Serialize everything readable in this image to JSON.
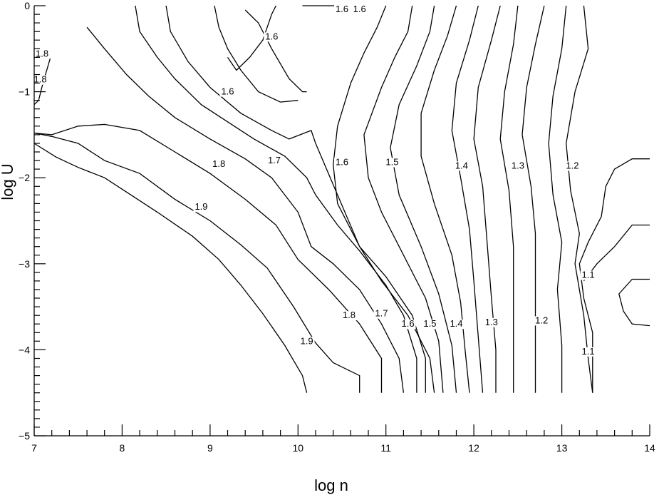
{
  "chart_data": {
    "type": "contour",
    "xlabel": "log n",
    "ylabel": "log U",
    "xlim": [
      7,
      14
    ],
    "ylim": [
      -5,
      0
    ],
    "x_ticks": [
      7,
      8,
      9,
      10,
      11,
      12,
      13,
      14
    ],
    "x_tick_labels": [
      "7",
      "8",
      "9",
      "10",
      "11",
      "12",
      "13",
      "14"
    ],
    "y_ticks": [
      0,
      -1,
      -2,
      -3,
      -4,
      -5
    ],
    "y_tick_labels": [
      "0",
      "−1",
      "−2",
      "−3",
      "−4",
      "−5"
    ],
    "grid": false,
    "line_color": "#000000",
    "contours": [
      {
        "level": "1.9",
        "points": [
          [
            7.0,
            -1.6
          ],
          [
            7.25,
            -1.76
          ],
          [
            7.5,
            -1.88
          ],
          [
            7.8,
            -2.0
          ],
          [
            8.1,
            -2.2
          ],
          [
            8.4,
            -2.4
          ],
          [
            8.8,
            -2.68
          ],
          [
            9.1,
            -2.95
          ],
          [
            9.35,
            -3.25
          ],
          [
            9.6,
            -3.58
          ],
          [
            9.85,
            -3.95
          ],
          [
            10.05,
            -4.3
          ],
          [
            10.1,
            -4.5
          ]
        ]
      },
      {
        "level": "1.9",
        "points": [
          [
            7.0,
            -1.48
          ],
          [
            7.2,
            -1.52
          ],
          [
            7.5,
            -1.6
          ],
          [
            7.8,
            -1.8
          ],
          [
            8.2,
            -1.95
          ],
          [
            8.6,
            -2.25
          ],
          [
            9.0,
            -2.5
          ],
          [
            9.35,
            -2.78
          ],
          [
            9.65,
            -3.05
          ],
          [
            9.95,
            -3.5
          ],
          [
            10.2,
            -3.92
          ],
          [
            10.4,
            -4.15
          ],
          [
            10.7,
            -4.3
          ],
          [
            10.7,
            -4.5
          ]
        ]
      },
      {
        "level": "1.8",
        "points": [
          [
            7.0,
            -1.48
          ],
          [
            7.2,
            -1.5
          ],
          [
            7.5,
            -1.4
          ],
          [
            7.8,
            -1.38
          ],
          [
            8.2,
            -1.45
          ],
          [
            8.6,
            -1.7
          ],
          [
            9.0,
            -1.95
          ],
          [
            9.4,
            -2.25
          ],
          [
            9.75,
            -2.55
          ],
          [
            10.0,
            -2.95
          ],
          [
            10.35,
            -3.3
          ],
          [
            10.7,
            -3.7
          ],
          [
            10.95,
            -4.1
          ],
          [
            10.95,
            -4.5
          ]
        ]
      },
      {
        "level": "1.8",
        "points": [
          [
            9.2,
            -0.6
          ],
          [
            9.3,
            -0.75
          ],
          [
            9.45,
            -0.6
          ],
          [
            9.6,
            -0.4
          ],
          [
            9.7,
            -0.1
          ],
          [
            9.75,
            0.0
          ]
        ]
      },
      {
        "level": "1.8",
        "points": [
          [
            7.0,
            -0.62
          ],
          [
            7.08,
            -0.53
          ],
          [
            7.18,
            -0.62
          ],
          [
            7.1,
            -0.9
          ],
          [
            7.05,
            -1.1
          ],
          [
            7.0,
            -1.15
          ]
        ]
      },
      {
        "level": "1.7",
        "points": [
          [
            7.6,
            -0.25
          ],
          [
            7.8,
            -0.5
          ],
          [
            8.05,
            -0.8
          ],
          [
            8.3,
            -1.05
          ],
          [
            8.6,
            -1.3
          ],
          [
            9.0,
            -1.55
          ],
          [
            9.4,
            -1.78
          ],
          [
            9.7,
            -2.0
          ],
          [
            10.0,
            -2.4
          ],
          [
            10.15,
            -2.8
          ],
          [
            10.4,
            -3.0
          ],
          [
            10.7,
            -3.3
          ],
          [
            10.95,
            -3.7
          ],
          [
            11.15,
            -4.1
          ],
          [
            11.2,
            -4.5
          ]
        ]
      },
      {
        "level": "1.7",
        "points": [
          [
            9.05,
            0.0
          ],
          [
            9.1,
            -0.25
          ],
          [
            9.2,
            -0.5
          ],
          [
            9.35,
            -0.75
          ],
          [
            9.55,
            -1.0
          ],
          [
            9.8,
            -1.12
          ],
          [
            10.0,
            -1.1
          ]
        ]
      },
      {
        "level": "1.6",
        "points": [
          [
            8.15,
            0.0
          ],
          [
            8.2,
            -0.3
          ],
          [
            8.4,
            -0.6
          ],
          [
            8.6,
            -0.85
          ],
          [
            8.9,
            -1.15
          ],
          [
            9.2,
            -1.35
          ],
          [
            9.5,
            -1.55
          ],
          [
            9.85,
            -1.75
          ],
          [
            10.1,
            -2.0
          ],
          [
            10.2,
            -2.2
          ],
          [
            10.45,
            -2.55
          ],
          [
            10.7,
            -2.85
          ],
          [
            11.0,
            -3.25
          ],
          [
            11.2,
            -3.6
          ],
          [
            11.35,
            -4.1
          ],
          [
            11.35,
            -4.5
          ]
        ]
      },
      {
        "level": "1.6",
        "points": [
          [
            9.4,
            -0.05
          ],
          [
            9.55,
            -0.2
          ],
          [
            9.7,
            -0.5
          ],
          [
            9.9,
            -0.85
          ],
          [
            10.05,
            -1.0
          ],
          [
            10.1,
            -1.0
          ]
        ]
      },
      {
        "level": "1.6",
        "points": [
          [
            10.05,
            0.0
          ],
          [
            10.25,
            0.0
          ],
          [
            10.45,
            0.0
          ]
        ]
      },
      {
        "level": "1.5",
        "points": [
          [
            8.5,
            0.0
          ],
          [
            8.55,
            -0.3
          ],
          [
            8.75,
            -0.65
          ],
          [
            9.0,
            -0.95
          ],
          [
            9.35,
            -1.25
          ],
          [
            9.7,
            -1.45
          ],
          [
            9.9,
            -1.55
          ],
          [
            10.15,
            -1.45
          ],
          [
            10.2,
            -1.6
          ],
          [
            10.45,
            -2.2
          ],
          [
            10.7,
            -2.8
          ],
          [
            11.0,
            -3.15
          ],
          [
            11.3,
            -3.6
          ],
          [
            11.45,
            -4.1
          ],
          [
            11.45,
            -4.5
          ]
        ]
      },
      {
        "level": "1.6",
        "points": [
          [
            11.0,
            0.0
          ],
          [
            10.9,
            -0.25
          ],
          [
            10.75,
            -0.55
          ],
          [
            10.6,
            -0.9
          ],
          [
            10.45,
            -1.4
          ],
          [
            10.4,
            -1.85
          ],
          [
            10.45,
            -2.3
          ],
          [
            10.7,
            -2.8
          ],
          [
            10.95,
            -3.2
          ],
          [
            11.25,
            -3.6
          ],
          [
            11.5,
            -4.1
          ],
          [
            11.55,
            -4.5
          ]
        ]
      },
      {
        "level": "1.5",
        "points": [
          [
            11.3,
            0.0
          ],
          [
            11.25,
            -0.3
          ],
          [
            11.1,
            -0.6
          ],
          [
            10.95,
            -0.95
          ],
          [
            10.75,
            -1.5
          ],
          [
            10.8,
            -2.0
          ],
          [
            10.95,
            -2.4
          ],
          [
            11.2,
            -2.9
          ],
          [
            11.45,
            -3.4
          ],
          [
            11.6,
            -3.9
          ],
          [
            11.65,
            -4.5
          ]
        ]
      },
      {
        "level": "1.5",
        "points": [
          [
            11.55,
            0.0
          ],
          [
            11.5,
            -0.3
          ],
          [
            11.35,
            -0.7
          ],
          [
            11.15,
            -1.15
          ],
          [
            11.05,
            -1.65
          ],
          [
            11.15,
            -2.2
          ],
          [
            11.4,
            -2.8
          ],
          [
            11.6,
            -3.35
          ],
          [
            11.75,
            -3.95
          ],
          [
            11.8,
            -4.5
          ]
        ]
      },
      {
        "level": "1.4",
        "points": [
          [
            11.8,
            0.0
          ],
          [
            11.7,
            -0.35
          ],
          [
            11.55,
            -0.75
          ],
          [
            11.4,
            -1.25
          ],
          [
            11.4,
            -1.75
          ],
          [
            11.55,
            -2.3
          ],
          [
            11.75,
            -2.9
          ],
          [
            11.85,
            -3.45
          ],
          [
            11.9,
            -4.0
          ],
          [
            11.95,
            -4.5
          ]
        ]
      },
      {
        "level": "1.4",
        "points": [
          [
            12.05,
            0.0
          ],
          [
            11.95,
            -0.4
          ],
          [
            11.8,
            -0.9
          ],
          [
            11.75,
            -1.45
          ],
          [
            11.85,
            -2.0
          ],
          [
            11.95,
            -2.6
          ],
          [
            12.0,
            -3.2
          ],
          [
            12.05,
            -3.85
          ],
          [
            12.1,
            -4.5
          ]
        ]
      },
      {
        "level": "1.4",
        "points": [
          [
            12.3,
            0.0
          ],
          [
            12.2,
            -0.4
          ],
          [
            12.05,
            -0.95
          ],
          [
            12.0,
            -1.55
          ],
          [
            12.1,
            -2.1
          ],
          [
            12.15,
            -2.75
          ],
          [
            12.2,
            -3.4
          ],
          [
            12.25,
            -4.0
          ],
          [
            12.25,
            -4.5
          ]
        ]
      },
      {
        "level": "1.3",
        "points": [
          [
            12.5,
            0.0
          ],
          [
            12.45,
            -0.45
          ],
          [
            12.35,
            -1.0
          ],
          [
            12.3,
            -1.55
          ],
          [
            12.4,
            -2.15
          ],
          [
            12.45,
            -2.8
          ],
          [
            12.45,
            -3.35
          ],
          [
            12.45,
            -3.9
          ],
          [
            12.45,
            -4.5
          ]
        ]
      },
      {
        "level": "1.3",
        "points": [
          [
            12.8,
            0.0
          ],
          [
            12.7,
            -0.45
          ],
          [
            12.6,
            -0.95
          ],
          [
            12.55,
            -1.5
          ],
          [
            12.65,
            -2.1
          ],
          [
            12.7,
            -2.65
          ],
          [
            12.7,
            -3.2
          ],
          [
            12.7,
            -3.85
          ],
          [
            12.7,
            -4.5
          ]
        ]
      },
      {
        "level": "1.2",
        "points": [
          [
            13.05,
            0.0
          ],
          [
            13.0,
            -0.5
          ],
          [
            12.9,
            -1.05
          ],
          [
            12.85,
            -1.6
          ],
          [
            12.9,
            -2.2
          ],
          [
            13.0,
            -2.75
          ],
          [
            12.95,
            -3.3
          ],
          [
            13.0,
            -3.95
          ],
          [
            13.0,
            -4.5
          ]
        ]
      },
      {
        "level": "1.2",
        "points": [
          [
            13.25,
            0.0
          ],
          [
            13.3,
            -0.5
          ],
          [
            13.15,
            -1.0
          ],
          [
            13.05,
            -1.6
          ],
          [
            13.1,
            -2.15
          ],
          [
            13.2,
            -2.65
          ],
          [
            13.15,
            -3.0
          ],
          [
            13.25,
            -3.6
          ],
          [
            13.3,
            -4.1
          ],
          [
            13.35,
            -4.5
          ]
        ]
      },
      {
        "level": "1.1",
        "points": [
          [
            14.0,
            -1.78
          ],
          [
            13.8,
            -1.78
          ],
          [
            13.6,
            -1.9
          ],
          [
            13.5,
            -2.1
          ],
          [
            13.45,
            -2.45
          ],
          [
            13.3,
            -2.75
          ],
          [
            13.2,
            -3.0
          ],
          [
            13.25,
            -3.4
          ],
          [
            13.35,
            -3.8
          ],
          [
            13.35,
            -4.2
          ],
          [
            13.35,
            -4.5
          ]
        ]
      },
      {
        "level": "1.1",
        "points": [
          [
            14.0,
            -2.55
          ],
          [
            13.8,
            -2.55
          ],
          [
            13.6,
            -2.8
          ],
          [
            13.4,
            -3.0
          ],
          [
            13.25,
            -3.2
          ]
        ]
      },
      {
        "level": "1.1",
        "points": [
          [
            14.0,
            -3.18
          ],
          [
            13.8,
            -3.18
          ],
          [
            13.65,
            -3.35
          ],
          [
            13.7,
            -3.55
          ],
          [
            13.8,
            -3.7
          ],
          [
            14.0,
            -3.72
          ]
        ]
      }
    ],
    "contour_labels": [
      {
        "text": "1.8",
        "x": 7.09,
        "y": -0.56
      },
      {
        "text": "1.8",
        "x": 7.07,
        "y": -0.86
      },
      {
        "text": "1.6",
        "x": 9.7,
        "y": -0.36
      },
      {
        "text": "1.6",
        "x": 9.2,
        "y": -1.0
      },
      {
        "text": "1.6",
        "x": 10.5,
        "y": -0.04
      },
      {
        "text": "1.6",
        "x": 10.7,
        "y": -0.04
      },
      {
        "text": "1.8",
        "x": 9.1,
        "y": -1.84
      },
      {
        "text": "1.7",
        "x": 9.73,
        "y": -1.8
      },
      {
        "text": "1.9",
        "x": 8.9,
        "y": -2.34
      },
      {
        "text": "1.6",
        "x": 10.5,
        "y": -1.82
      },
      {
        "text": "1.5",
        "x": 11.07,
        "y": -1.82
      },
      {
        "text": "1.4",
        "x": 11.86,
        "y": -1.86
      },
      {
        "text": "1.3",
        "x": 12.5,
        "y": -1.86
      },
      {
        "text": "1.2",
        "x": 13.12,
        "y": -1.86
      },
      {
        "text": "1.1",
        "x": 13.3,
        "y": -3.13
      },
      {
        "text": "1.8",
        "x": 10.58,
        "y": -3.6
      },
      {
        "text": "1.7",
        "x": 10.95,
        "y": -3.58
      },
      {
        "text": "1.6",
        "x": 11.25,
        "y": -3.7
      },
      {
        "text": "1.5",
        "x": 11.5,
        "y": -3.7
      },
      {
        "text": "1.4",
        "x": 11.8,
        "y": -3.7
      },
      {
        "text": "1.3",
        "x": 12.2,
        "y": -3.68
      },
      {
        "text": "1.2",
        "x": 12.77,
        "y": -3.66
      },
      {
        "text": "1.1",
        "x": 13.3,
        "y": -4.02
      },
      {
        "text": "1.9",
        "x": 10.1,
        "y": -3.9
      }
    ]
  }
}
